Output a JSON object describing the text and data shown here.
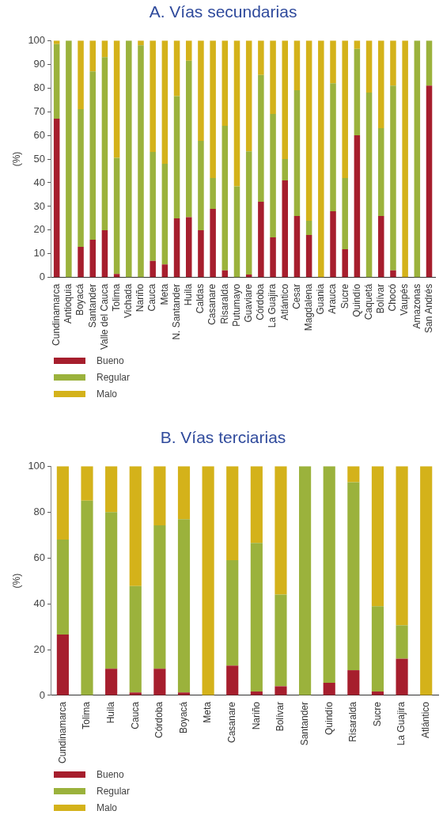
{
  "chart_data": [
    {
      "type": "bar",
      "title": "A. Vías secundarias",
      "ylabel": "(%)",
      "stacked": true,
      "grid": false,
      "legend": "bottom left",
      "categories": [
        "Cundinamarca",
        "Antioquia",
        "Boyacá",
        "Santander",
        "Valle del Cauca",
        "Tolima",
        "Vichada",
        "Nariño",
        "Cauca",
        "Meta",
        "N. Santander",
        "Huila",
        "Caldas",
        "Casanare",
        "Risaralda",
        "Putumayo",
        "Guaviare",
        "Córdoba",
        "La Guajira",
        "Atlántico",
        "Cesar",
        "Magdalena",
        "Guania",
        "Arauca",
        "Sucre",
        "Quindío",
        "Caquetá",
        "Bolívar",
        "Chocó",
        "Vaupés",
        "Amazonas",
        "San Andrés"
      ],
      "ylim": [
        0,
        100
      ],
      "yticks": [
        0,
        10,
        20,
        30,
        40,
        50,
        60,
        70,
        80,
        90,
        100
      ],
      "series": [
        {
          "name": "Bueno",
          "color": "#a61e2d",
          "values": [
            67,
            0,
            13,
            16,
            20,
            1.5,
            0,
            0,
            7,
            5.5,
            25,
            25.5,
            20,
            29,
            3,
            0,
            1.3,
            32,
            17,
            41,
            26,
            18,
            0,
            28,
            12,
            60,
            0,
            26,
            3,
            0,
            0,
            81
          ]
        },
        {
          "name": "Regular",
          "color": "#9bb23c",
          "values": [
            31.5,
            100,
            58,
            71,
            73,
            49,
            100,
            98,
            46,
            42.5,
            51.5,
            66,
            37.7,
            13,
            61,
            38.5,
            52,
            53.5,
            52,
            9,
            53,
            6,
            0,
            54,
            30,
            36.5,
            78,
            37,
            78,
            0,
            100,
            19
          ]
        },
        {
          "name": "Malo",
          "color": "#d4b21a",
          "values": [
            1.5,
            0,
            29,
            13,
            7,
            49.5,
            0,
            2,
            47,
            52,
            23.5,
            8.5,
            42.3,
            58,
            36,
            61.5,
            46.7,
            14.5,
            31,
            50,
            21,
            76,
            100,
            18,
            58,
            3.5,
            22,
            37,
            19,
            100,
            0,
            0
          ]
        }
      ]
    },
    {
      "type": "bar",
      "title": "B. Vías terciarias",
      "ylabel": "(%)",
      "stacked": true,
      "grid": false,
      "legend": "bottom left",
      "categories": [
        "Cundinamarca",
        "Tolima",
        "Huila",
        "Cauca",
        "Córdoba",
        "Boyacá",
        "Meta",
        "Casanare",
        "Nariño",
        "Bolívar",
        "Santander",
        "Quindío",
        "Risaralda",
        "Sucre",
        "La Guajira",
        "Atlántico"
      ],
      "ylim": [
        0,
        100
      ],
      "yticks": [
        0,
        20,
        40,
        60,
        80,
        100
      ],
      "series": [
        {
          "name": "Bueno",
          "color": "#a61e2d",
          "values": [
            26.6,
            0,
            11.6,
            1.3,
            11.6,
            1.3,
            0,
            13,
            1.7,
            4,
            0,
            5.5,
            11,
            1.7,
            16,
            0
          ]
        },
        {
          "name": "Regular",
          "color": "#9bb23c",
          "values": [
            41.4,
            85,
            68.4,
            46.4,
            62.6,
            75.6,
            0,
            46,
            64.8,
            40,
            100,
            94.5,
            82,
            37.2,
            14.6,
            0
          ]
        },
        {
          "name": "Malo",
          "color": "#d4b21a",
          "values": [
            32,
            15,
            20,
            52.3,
            25.8,
            23.1,
            100,
            41,
            33.5,
            56,
            0,
            0,
            7,
            61.1,
            69.4,
            100
          ]
        }
      ]
    }
  ]
}
